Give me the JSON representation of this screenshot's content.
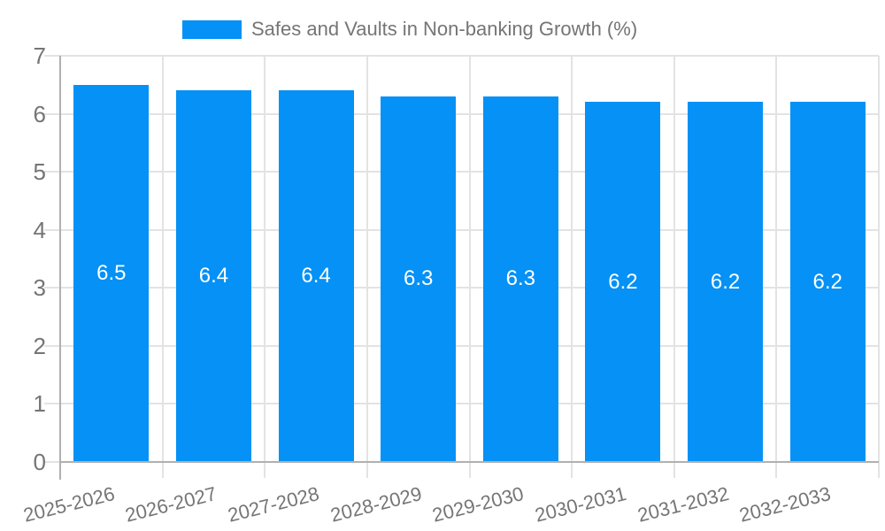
{
  "legend": {
    "label": "Safes and Vaults in Non-banking Growth (%)"
  },
  "chart_data": {
    "type": "bar",
    "title": "Safes and Vaults in Non-banking Growth (%)",
    "categories": [
      "2025-2026",
      "2026-2027",
      "2027-2028",
      "2028-2029",
      "2029-2030",
      "2030-2031",
      "2031-2032",
      "2032-2033"
    ],
    "values": [
      6.5,
      6.4,
      6.4,
      6.3,
      6.3,
      6.2,
      6.2,
      6.2
    ],
    "value_labels": [
      "6.5",
      "6.4",
      "6.4",
      "6.3",
      "6.3",
      "6.2",
      "6.2",
      "6.2"
    ],
    "xlabel": "",
    "ylabel": "",
    "ylim": [
      0,
      7
    ],
    "yticks": [
      0,
      1,
      2,
      3,
      4,
      5,
      6,
      7
    ],
    "grid": true,
    "legend_position": "top",
    "bar_color": "#0591f5",
    "value_label_color": "#ffffff",
    "axis_text_color": "#757575",
    "gridline_color": "#e3e3e3",
    "axis_line_color": "#b0b0b0"
  }
}
